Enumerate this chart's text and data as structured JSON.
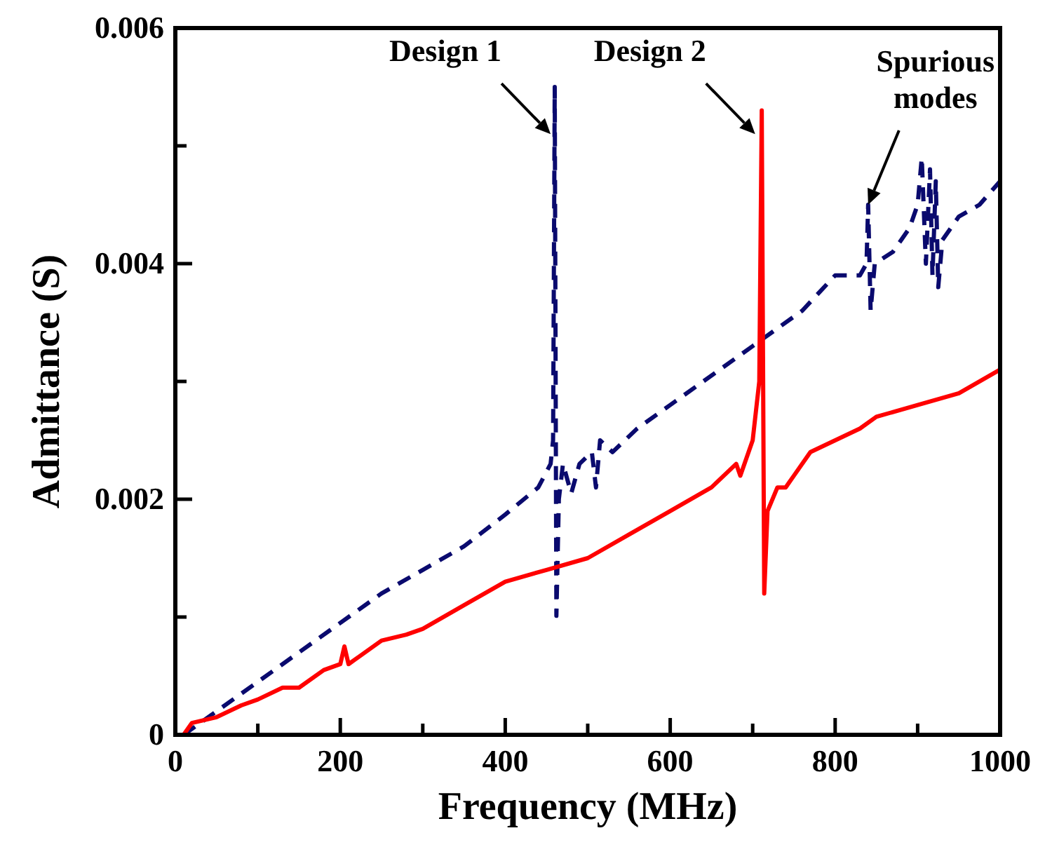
{
  "chart_data": {
    "type": "line",
    "xlabel": "Frequency (MHz)",
    "ylabel": "Admittance (S)",
    "xlim": [
      0,
      1000
    ],
    "ylim": [
      0,
      0.006
    ],
    "xticks": [
      0,
      {
        "value": 100,
        "label": null
      },
      200,
      {
        "value": 300,
        "label": null
      },
      400,
      {
        "value": 500,
        "label": null
      },
      600,
      {
        "value": 700,
        "label": null
      },
      800,
      {
        "value": 900,
        "label": null
      },
      1000
    ],
    "yticks": [
      0,
      {
        "value": 0.001,
        "label": null
      },
      0.002,
      {
        "value": 0.003,
        "label": null
      },
      0.004,
      {
        "value": 0.005,
        "label": null
      },
      0.006
    ],
    "grid": false,
    "marker": "none",
    "series": [
      {
        "color": "#0a0a6e",
        "line_style": "dashed",
        "x": [
          10,
          30,
          50,
          100,
          150,
          200,
          250,
          300,
          350,
          400,
          440,
          455,
          458,
          460,
          462,
          465,
          470,
          480,
          490,
          505,
          510,
          515,
          530,
          560,
          600,
          640,
          680,
          700,
          720,
          760,
          800,
          830,
          838,
          840,
          843,
          848,
          870,
          890,
          900,
          905,
          910,
          915,
          918,
          922,
          925,
          930,
          950,
          975,
          1000
        ],
        "values": [
          0,
          0.0001,
          0.0002,
          0.00045,
          0.0007,
          0.00095,
          0.0012,
          0.0014,
          0.0016,
          0.00187,
          0.0021,
          0.0023,
          0.0025,
          0.0055,
          0.00101,
          0.002,
          0.0023,
          0.00205,
          0.0023,
          0.0024,
          0.0021,
          0.0025,
          0.0024,
          0.0026,
          0.0028,
          0.003,
          0.0032,
          0.0033,
          0.0034,
          0.0036,
          0.0039,
          0.0039,
          0.004,
          0.0045,
          0.0036,
          0.004,
          0.0041,
          0.0043,
          0.0045,
          0.0049,
          0.004,
          0.0048,
          0.0039,
          0.0047,
          0.0038,
          0.0042,
          0.0044,
          0.0045,
          0.0047
        ]
      },
      {
        "color": "#ff0000",
        "line_style": "solid",
        "x": [
          10,
          20,
          50,
          80,
          100,
          130,
          150,
          180,
          200,
          205,
          210,
          250,
          280,
          300,
          350,
          400,
          450,
          500,
          550,
          600,
          650,
          680,
          685,
          700,
          708,
          711,
          714,
          718,
          730,
          740,
          745,
          750,
          770,
          800,
          830,
          850,
          900,
          950,
          1000
        ],
        "values": [
          0,
          0.0001,
          0.00015,
          0.00025,
          0.0003,
          0.0004,
          0.0004,
          0.00055,
          0.0006,
          0.00075,
          0.0006,
          0.0008,
          0.00085,
          0.0009,
          0.0011,
          0.0013,
          0.0014,
          0.0015,
          0.0017,
          0.0019,
          0.0021,
          0.0023,
          0.0022,
          0.0025,
          0.003,
          0.0053,
          0.0012,
          0.0019,
          0.0021,
          0.0021,
          0.00215,
          0.0022,
          0.0024,
          0.0025,
          0.0026,
          0.0027,
          0.0028,
          0.0029,
          0.0031
        ]
      }
    ],
    "annotations": [
      {
        "text": "Design 1",
        "x": 455,
        "y": 0.0051
      },
      {
        "text": "Design 2",
        "x": 703,
        "y": 0.0051
      },
      {
        "text": "Spurious modes",
        "x": 840,
        "y": 0.0045
      }
    ]
  }
}
